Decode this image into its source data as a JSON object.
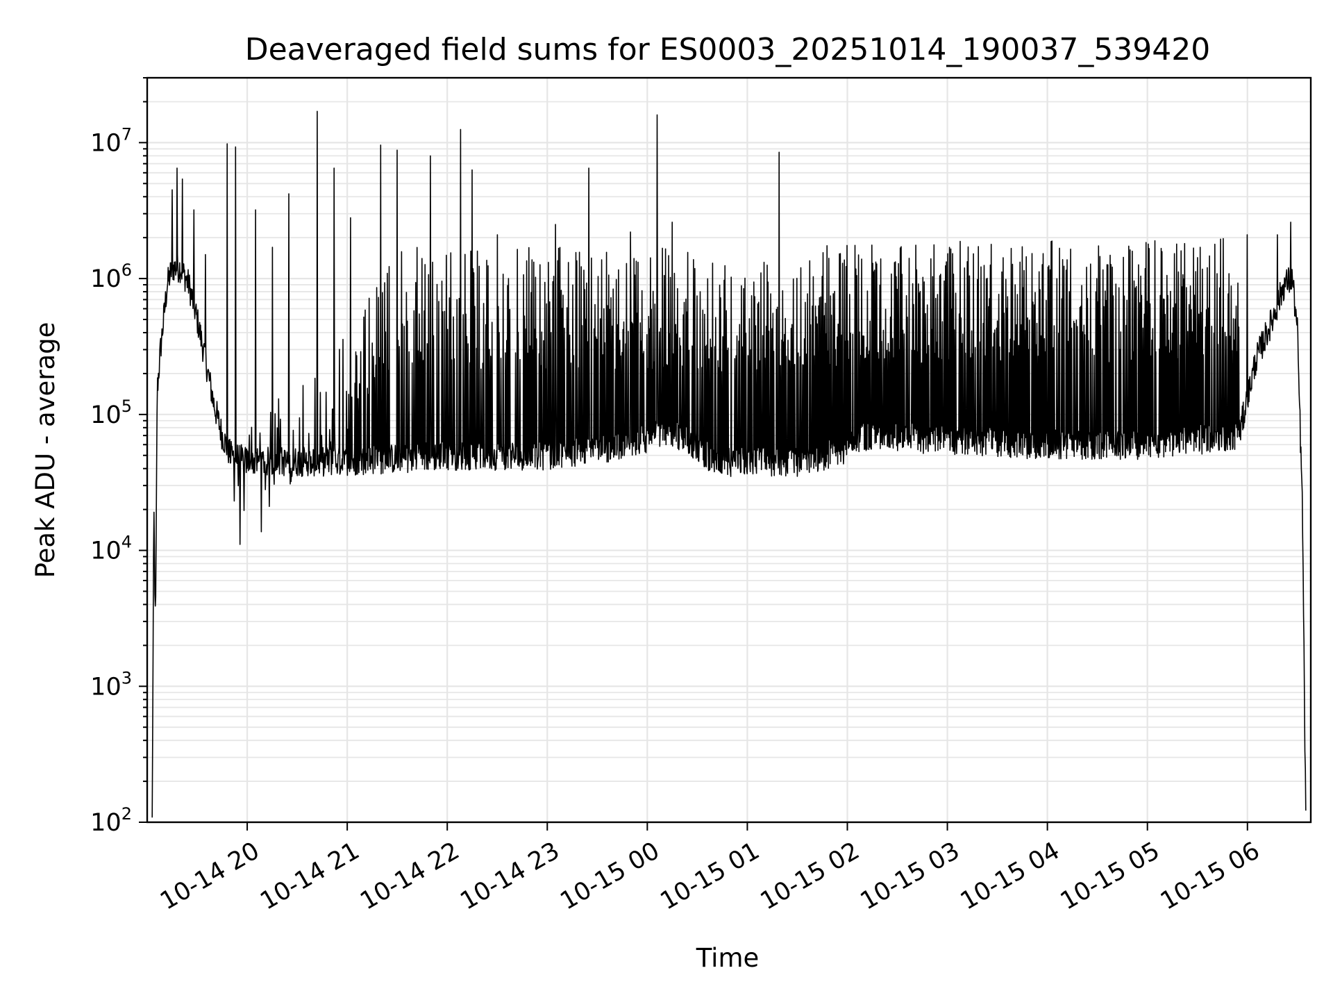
{
  "chart_data": {
    "type": "line",
    "title": "Deaveraged field sums for ES0003_20251014_190037_539420",
    "xlabel": "Time",
    "ylabel": "Peak ADU - average",
    "yscale": "log",
    "ylim": [
      100,
      30000000
    ],
    "xlim": [
      "2025-10-14 19:00",
      "2025-10-15 06:38"
    ],
    "grid": true,
    "line_color": "#000000",
    "grid_color": "#e6e6e6",
    "x_ticks": [
      {
        "value": "2025-10-14 20:00",
        "label": "10-14 20"
      },
      {
        "value": "2025-10-14 21:00",
        "label": "10-14 21"
      },
      {
        "value": "2025-10-14 22:00",
        "label": "10-14 22"
      },
      {
        "value": "2025-10-14 23:00",
        "label": "10-14 23"
      },
      {
        "value": "2025-10-15 00:00",
        "label": "10-15 00"
      },
      {
        "value": "2025-10-15 01:00",
        "label": "10-15 01"
      },
      {
        "value": "2025-10-15 02:00",
        "label": "10-15 02"
      },
      {
        "value": "2025-10-15 03:00",
        "label": "10-15 03"
      },
      {
        "value": "2025-10-15 04:00",
        "label": "10-15 04"
      },
      {
        "value": "2025-10-15 05:00",
        "label": "10-15 05"
      },
      {
        "value": "2025-10-15 06:00",
        "label": "10-15 06"
      }
    ],
    "y_ticks": [
      {
        "value": 100,
        "base": "10",
        "exp": "2"
      },
      {
        "value": 1000,
        "base": "10",
        "exp": "3"
      },
      {
        "value": 10000,
        "base": "10",
        "exp": "4"
      },
      {
        "value": 100000,
        "base": "10",
        "exp": "5"
      },
      {
        "value": 1000000,
        "base": "10",
        "exp": "6"
      },
      {
        "value": 10000000,
        "base": "10",
        "exp": "7"
      }
    ],
    "series": [
      {
        "baseline": [
          [
            "2025-10-14 19:03",
            100
          ],
          [
            "2025-10-14 19:04",
            20000
          ],
          [
            "2025-10-14 19:05",
            2400
          ],
          [
            "2025-10-14 19:06",
            150000
          ],
          [
            "2025-10-14 19:08",
            300000
          ],
          [
            "2025-10-14 19:12",
            900000
          ],
          [
            "2025-10-14 19:15",
            1200000
          ],
          [
            "2025-10-14 19:20",
            1200000
          ],
          [
            "2025-10-14 19:25",
            900000
          ],
          [
            "2025-10-14 19:30",
            500000
          ],
          [
            "2025-10-14 19:35",
            250000
          ],
          [
            "2025-10-14 19:40",
            120000
          ],
          [
            "2025-10-14 19:45",
            70000
          ],
          [
            "2025-10-14 19:50",
            50000
          ],
          [
            "2025-10-14 20:00",
            45000
          ],
          [
            "2025-10-14 21:00",
            45000
          ],
          [
            "2025-10-14 22:00",
            50000
          ],
          [
            "2025-10-14 23:00",
            50000
          ],
          [
            "2025-10-14 23:50",
            60000
          ],
          [
            "2025-10-15 00:10",
            75000
          ],
          [
            "2025-10-15 00:25",
            65000
          ],
          [
            "2025-10-15 00:40",
            45000
          ],
          [
            "2025-10-15 01:30",
            45000
          ],
          [
            "2025-10-15 02:00",
            55000
          ],
          [
            "2025-10-15 02:10",
            70000
          ],
          [
            "2025-10-15 03:00",
            65000
          ],
          [
            "2025-10-15 04:00",
            60000
          ],
          [
            "2025-10-15 05:00",
            60000
          ],
          [
            "2025-10-15 05:55",
            70000
          ],
          [
            "2025-10-15 06:05",
            250000
          ],
          [
            "2025-10-15 06:15",
            500000
          ],
          [
            "2025-10-15 06:22",
            900000
          ],
          [
            "2025-10-15 06:27",
            1000000
          ],
          [
            "2025-10-15 06:30",
            400000
          ],
          [
            "2025-10-15 06:33",
            20000
          ],
          [
            "2025-10-15 06:35",
            100
          ]
        ],
        "spike_envelope": [
          [
            "2025-10-14 19:50",
            60000
          ],
          [
            "2025-10-14 20:30",
            200000
          ],
          [
            "2025-10-14 21:00",
            400000
          ],
          [
            "2025-10-14 21:30",
            1700000
          ],
          [
            "2025-10-14 22:00",
            1700000
          ],
          [
            "2025-10-14 23:00",
            1700000
          ],
          [
            "2025-10-15 00:00",
            1700000
          ],
          [
            "2025-10-15 01:00",
            1600000
          ],
          [
            "2025-10-15 02:00",
            1800000
          ],
          [
            "2025-10-15 03:00",
            1900000
          ],
          [
            "2025-10-15 04:00",
            1900000
          ],
          [
            "2025-10-15 05:00",
            1900000
          ],
          [
            "2025-10-15 05:55",
            2000000
          ]
        ],
        "spikes": [
          [
            "2025-10-14 19:15",
            4500000
          ],
          [
            "2025-10-14 19:18",
            6500000
          ],
          [
            "2025-10-14 19:21",
            5400000
          ],
          [
            "2025-10-14 19:28",
            3200000
          ],
          [
            "2025-10-14 19:35",
            1500000
          ],
          [
            "2025-10-14 19:48",
            9800000
          ],
          [
            "2025-10-14 19:53",
            9300000
          ],
          [
            "2025-10-14 20:05",
            3200000
          ],
          [
            "2025-10-14 20:15",
            1700000
          ],
          [
            "2025-10-14 20:25",
            4200000
          ],
          [
            "2025-10-14 20:42",
            17000000
          ],
          [
            "2025-10-14 20:52",
            6500000
          ],
          [
            "2025-10-14 21:02",
            2800000
          ],
          [
            "2025-10-14 21:20",
            9600000
          ],
          [
            "2025-10-14 21:30",
            8800000
          ],
          [
            "2025-10-14 21:50",
            8000000
          ],
          [
            "2025-10-14 22:08",
            12500000
          ],
          [
            "2025-10-14 22:15",
            6300000
          ],
          [
            "2025-10-14 22:30",
            2100000
          ],
          [
            "2025-10-14 23:05",
            2500000
          ],
          [
            "2025-10-14 23:25",
            6500000
          ],
          [
            "2025-10-14 23:50",
            2200000
          ],
          [
            "2025-10-15 00:06",
            16000000
          ],
          [
            "2025-10-15 00:15",
            2600000
          ],
          [
            "2025-10-15 01:19",
            8500000
          ],
          [
            "2025-10-15 06:00",
            2100000
          ],
          [
            "2025-10-15 06:18",
            2100000
          ],
          [
            "2025-10-15 06:26",
            2600000
          ]
        ]
      }
    ]
  }
}
